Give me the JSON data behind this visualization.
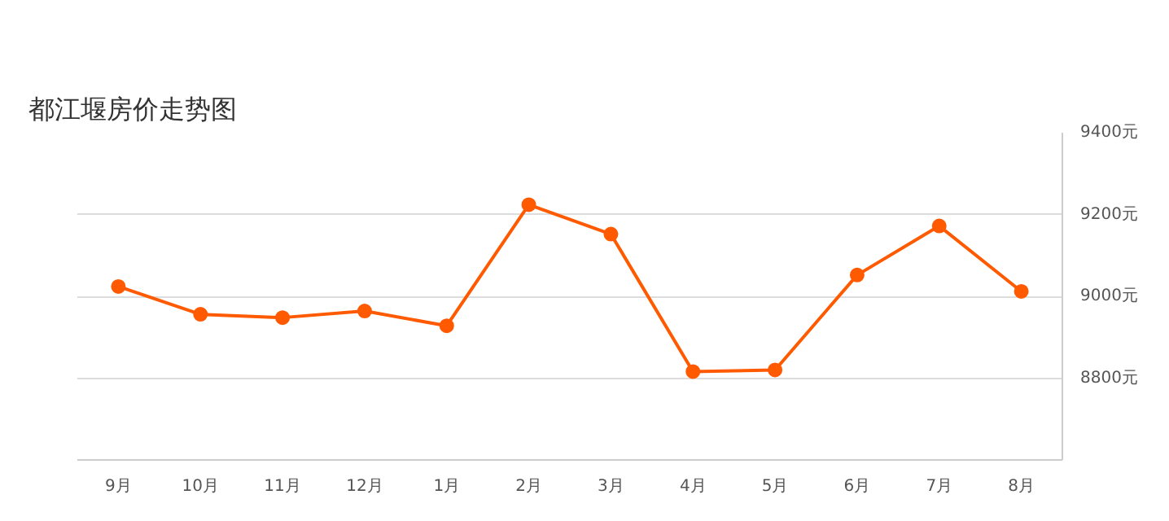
{
  "chart_data": {
    "type": "line",
    "title": "都江堰房价走势图",
    "categories": [
      "9月",
      "10月",
      "11月",
      "12月",
      "1月",
      "2月",
      "3月",
      "4月",
      "5月",
      "6月",
      "7月",
      "8月"
    ],
    "series": [
      {
        "color": "#ff5a00",
        "values": [
          9024,
          8956,
          8948,
          8964,
          8928,
          9224,
          9152,
          8816,
          8820,
          9052,
          9172,
          9012
        ]
      }
    ],
    "ylim": [
      8600,
      9400
    ],
    "yticks": [
      {
        "value": 8800,
        "label": "8800元"
      },
      {
        "value": 9000,
        "label": "9000元"
      },
      {
        "value": 9200,
        "label": "9200元"
      },
      {
        "value": 9400,
        "label": "9400元"
      }
    ],
    "grid": "y",
    "marker": "circle",
    "line_style": "solid"
  }
}
